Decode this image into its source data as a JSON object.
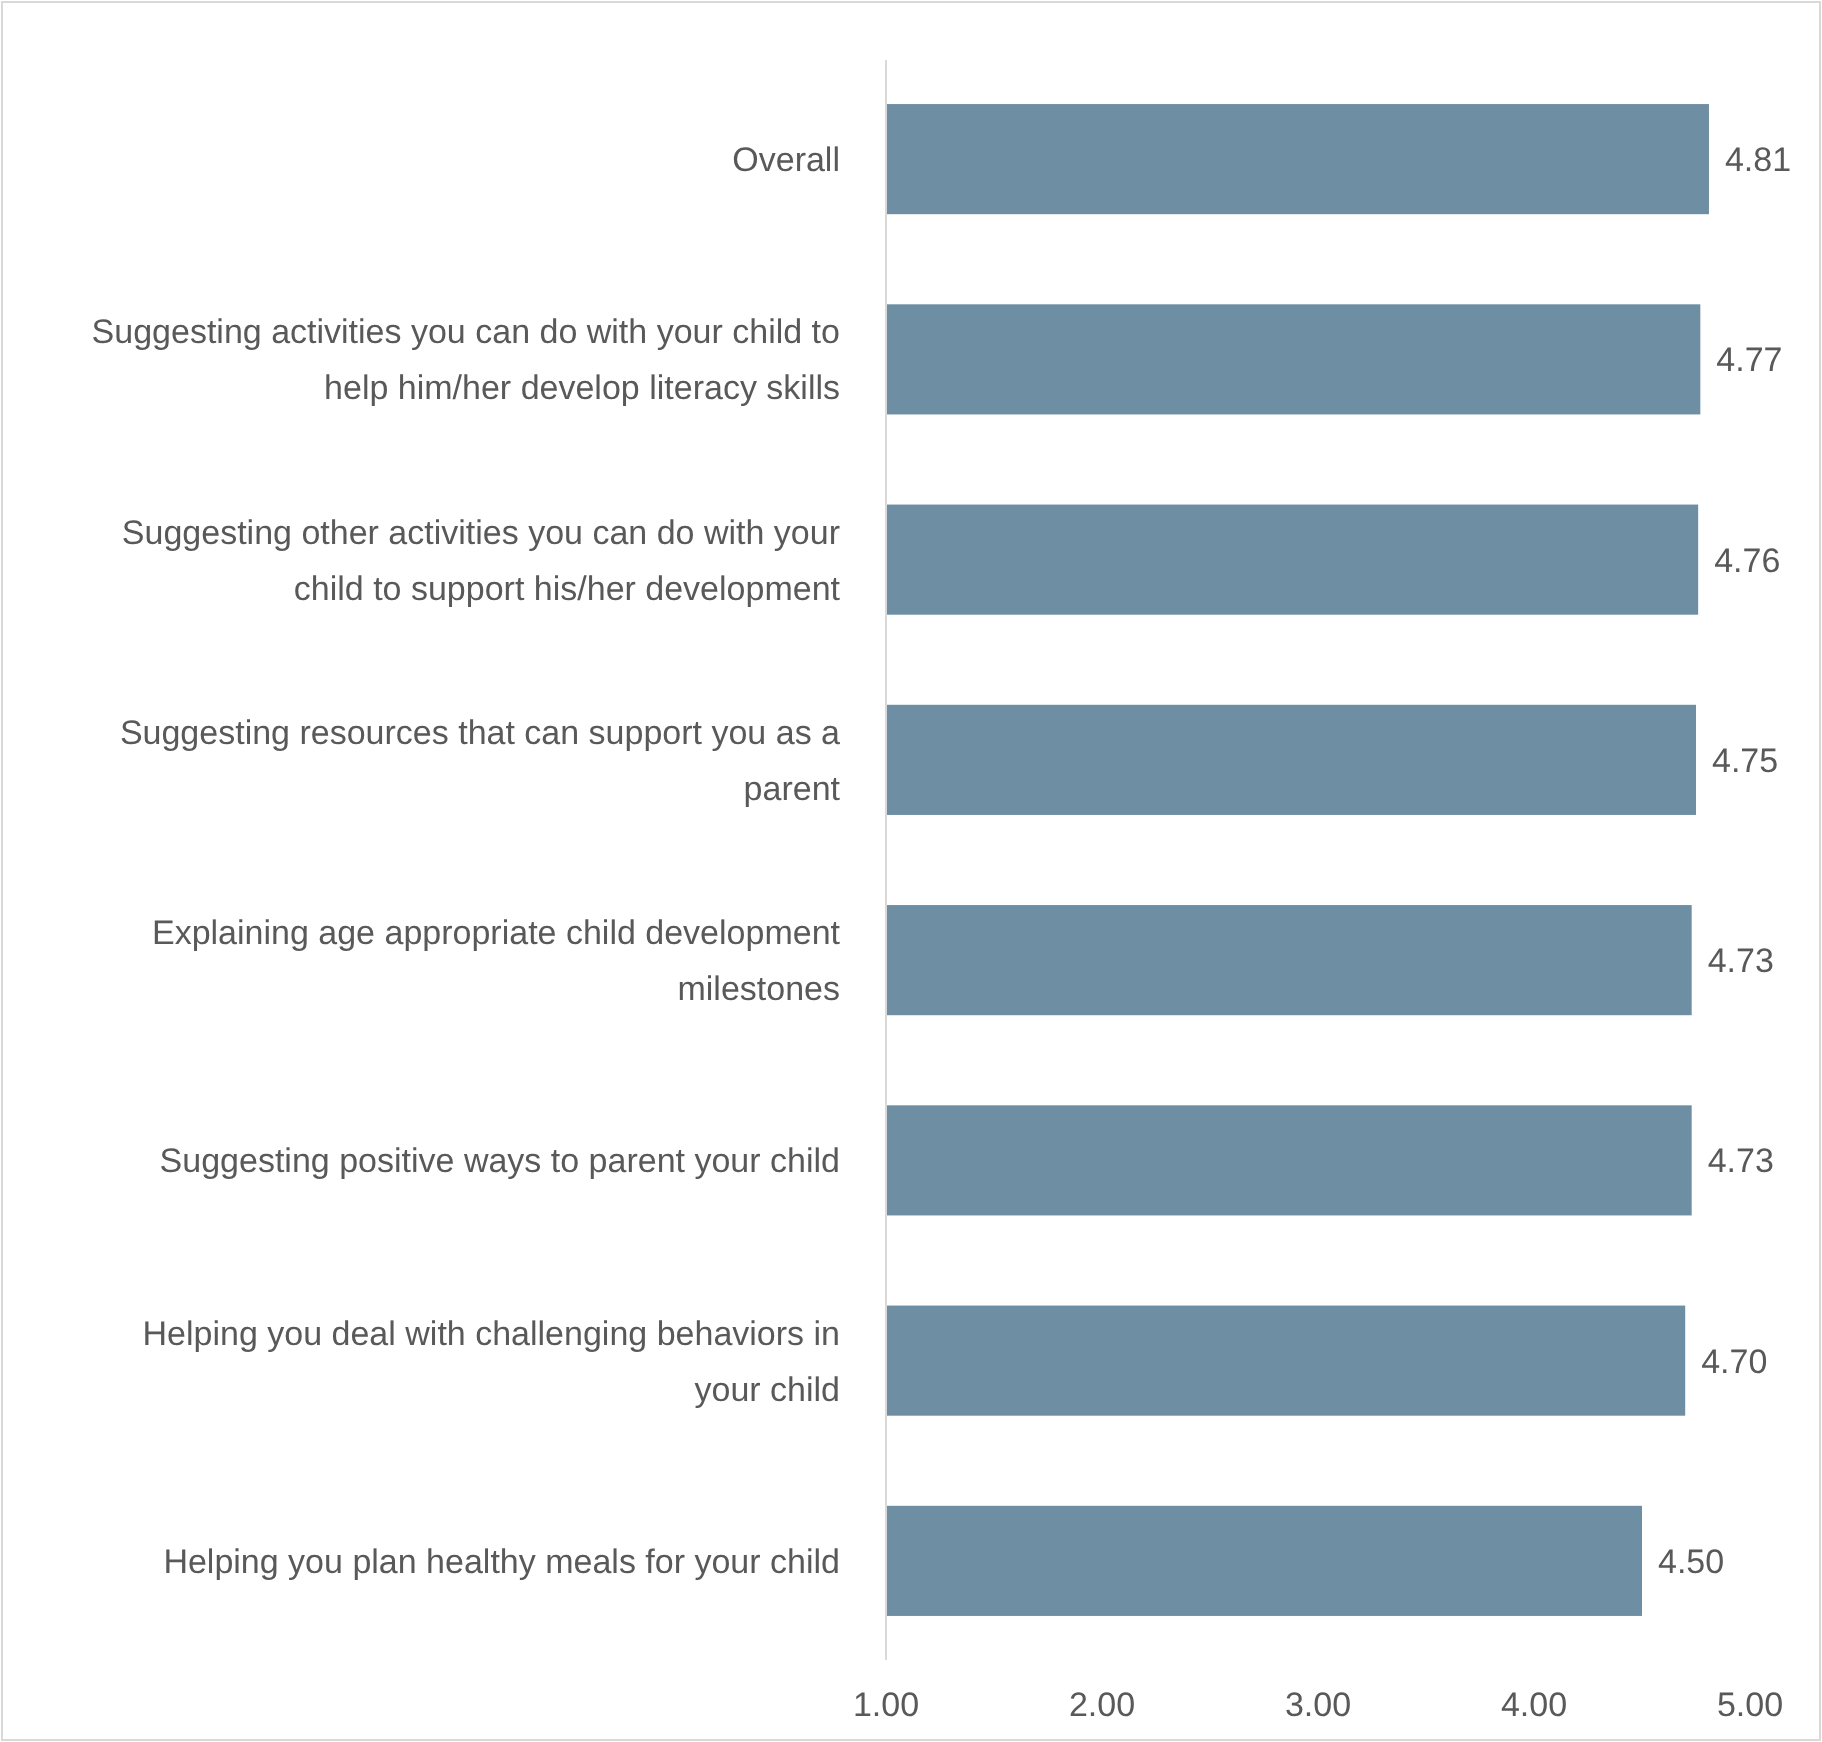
{
  "chart_data": {
    "type": "bar",
    "orientation": "horizontal",
    "categories": [
      "Overall",
      "Suggesting activities you can do with your child to help him/her develop literacy skills",
      "Suggesting other activities you can do with your child to support his/her development",
      "Suggesting resources that can support you as a parent",
      "Explaining age appropriate child development milestones",
      "Suggesting positive ways to parent your child",
      "Helping you deal with challenging behaviors in your child",
      "Helping you plan healthy meals for your child"
    ],
    "values": [
      4.81,
      4.77,
      4.76,
      4.75,
      4.73,
      4.73,
      4.7,
      4.5
    ],
    "value_labels": [
      "4.81",
      "4.77",
      "4.76",
      "4.75",
      "4.73",
      "4.73",
      "4.70",
      "4.50"
    ],
    "color": "#6e8fa3",
    "xlim": [
      1,
      5
    ],
    "xticks": [
      {
        "value": 1,
        "label": "1.00"
      },
      {
        "value": 2,
        "label": "2.00"
      },
      {
        "value": 3,
        "label": "3.00"
      },
      {
        "value": 4,
        "label": "4.00"
      },
      {
        "value": 5,
        "label": "5.00"
      }
    ],
    "grid": false
  }
}
